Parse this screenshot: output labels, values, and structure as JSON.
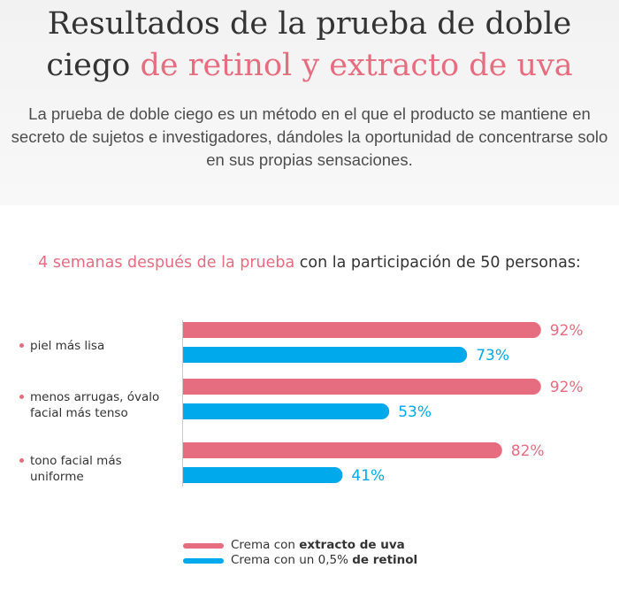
{
  "header": {
    "title_line1": "Resultados de la prueba de doble",
    "title_line2_plain": "ciego ",
    "title_line2_accent": "de retinol y extracto de uva",
    "intro": "La prueba de doble ciego es un método en el que el producto se mantiene en secreto de sujetos e investigadores, dándoles la oportunidad de concentrarse solo en sus propias sensaciones."
  },
  "subtitle": {
    "accent": "4 semanas después de la prueba",
    "rest": " con la participación de 50 personas:"
  },
  "colors": {
    "pink": "#e66d80",
    "blue": "#00a8ec",
    "text": "#333333"
  },
  "chart_data": {
    "type": "bar",
    "orientation": "horizontal",
    "categories": [
      "piel más lisa",
      "menos arrugas, óvalo facial más tenso",
      "tono facial más uniforme"
    ],
    "series": [
      {
        "name": "Crema con extracto de uva",
        "values": [
          92,
          92,
          82
        ],
        "labels": [
          "92%",
          "92%",
          "82%"
        ],
        "color": "#e66d80"
      },
      {
        "name": "Crema con un 0,5% de retinol",
        "values": [
          73,
          53,
          41
        ],
        "labels": [
          "73%",
          "53%",
          "41%"
        ],
        "color": "#00a8ec"
      }
    ],
    "xlim": [
      0,
      100
    ],
    "grid": false,
    "legend_position": "bottom"
  },
  "legend": [
    {
      "prefix": "Crema con ",
      "bold": "extracto de uva",
      "color": "#e66d80"
    },
    {
      "prefix": "Crema con un 0,5% ",
      "bold": "de retinol",
      "color": "#00a8ec"
    }
  ]
}
